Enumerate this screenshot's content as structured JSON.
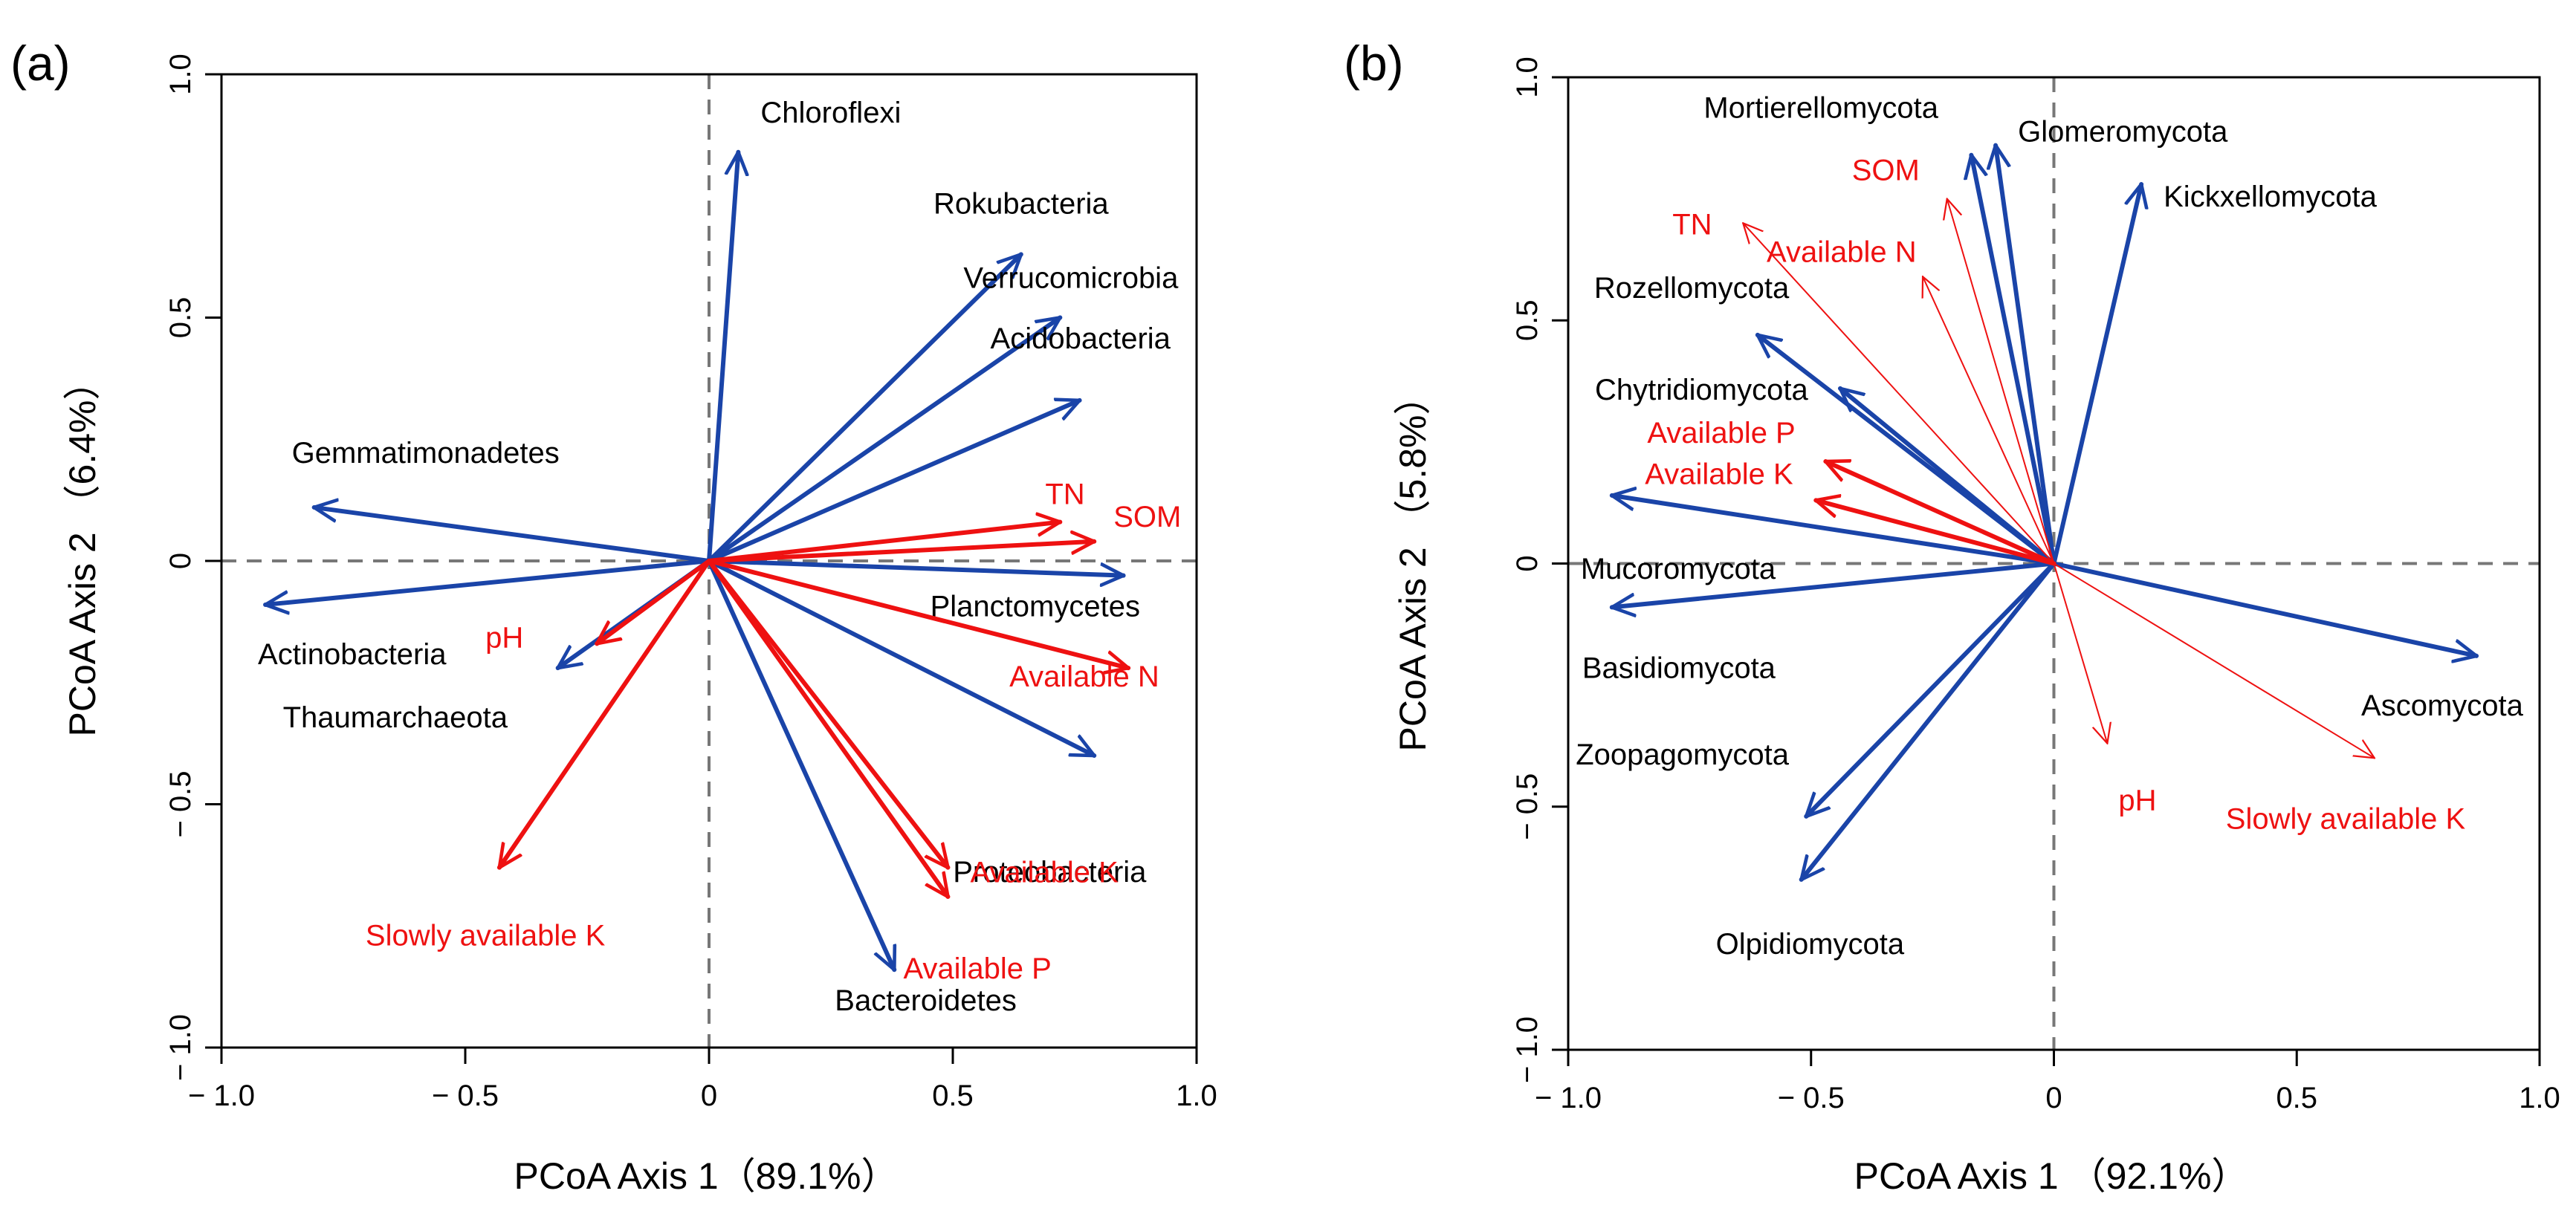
{
  "chart_data": [
    {
      "type": "biplot",
      "panel_label": "(a)",
      "xlabel": "PCoA Axis 1（89.1%）",
      "ylabel": "PCoA Axis 2 （6.4%）",
      "xlim": [
        -1,
        1
      ],
      "ylim": [
        -1,
        1
      ],
      "xticks": [
        -1,
        -0.5,
        0,
        0.5,
        1
      ],
      "yticks": [
        -1,
        -0.5,
        0,
        0.5,
        1
      ],
      "xticklabels": [
        "− 1.0",
        "− 0.5",
        "0",
        "0.5",
        "1.0"
      ],
      "yticklabels": [
        "− 1.0",
        "− 0.5",
        "0",
        "0.5",
        "1.0"
      ],
      "colors": {
        "species": "#1a44a8",
        "environment": "#ee1111"
      },
      "series": [
        {
          "name": "Chloroflexi",
          "group": "species",
          "x": 0.06,
          "y": 0.84
        },
        {
          "name": "Rokubacteria",
          "group": "species",
          "x": 0.64,
          "y": 0.63
        },
        {
          "name": "Verrucomicrobia",
          "group": "species",
          "x": 0.72,
          "y": 0.5
        },
        {
          "name": "Acidobacteria",
          "group": "species",
          "x": 0.76,
          "y": 0.33
        },
        {
          "name": "Gemmatimonadetes",
          "group": "species",
          "x": -0.81,
          "y": 0.11
        },
        {
          "name": "Actinobacteria",
          "group": "species",
          "x": -0.91,
          "y": -0.09
        },
        {
          "name": "Planctomycetes",
          "group": "species",
          "x": 0.85,
          "y": -0.03
        },
        {
          "name": "Proteobacteria",
          "group": "species",
          "x": 0.79,
          "y": -0.4
        },
        {
          "name": "Thaumarchaeota",
          "group": "species",
          "x": -0.31,
          "y": -0.22
        },
        {
          "name": "Bacteroidetes",
          "group": "species",
          "x": 0.38,
          "y": -0.84
        },
        {
          "name": "TN",
          "group": "environment",
          "x": 0.72,
          "y": 0.08
        },
        {
          "name": "SOM",
          "group": "environment",
          "x": 0.79,
          "y": 0.04
        },
        {
          "name": "Available N",
          "group": "environment",
          "x": 0.86,
          "y": -0.22
        },
        {
          "name": "pH",
          "group": "environment",
          "x": -0.23,
          "y": -0.17
        },
        {
          "name": "Available K",
          "group": "environment",
          "x": 0.49,
          "y": -0.63
        },
        {
          "name": "Available P",
          "group": "environment",
          "x": 0.49,
          "y": -0.69
        },
        {
          "name": "Slowly available K",
          "group": "environment",
          "x": -0.43,
          "y": -0.63
        }
      ]
    },
    {
      "type": "biplot",
      "panel_label": "(b)",
      "xlabel": "PCoA Axis 1 （92.1%）",
      "ylabel": "PCoA Axis 2 （5.8%）",
      "xlim": [
        -1,
        1
      ],
      "ylim": [
        -1,
        1
      ],
      "xticks": [
        -1,
        -0.5,
        0,
        0.5,
        1
      ],
      "yticks": [
        -1,
        -0.5,
        0,
        0.5,
        1
      ],
      "xticklabels": [
        "− 1.0",
        "− 0.5",
        "0",
        "0.5",
        "1.0"
      ],
      "yticklabels": [
        "− 1.0",
        "− 0.5",
        "0",
        "0.5",
        "1.0"
      ],
      "colors": {
        "species": "#1a44a8",
        "environment": "#ee1111"
      },
      "series": [
        {
          "name": "Mortierellomycota",
          "group": "species",
          "x": -0.17,
          "y": 0.84
        },
        {
          "name": "Glomeromycota",
          "group": "species",
          "x": -0.12,
          "y": 0.86
        },
        {
          "name": "Kickxellomycota",
          "group": "species",
          "x": 0.18,
          "y": 0.78
        },
        {
          "name": "Rozellomycota",
          "group": "species",
          "x": -0.61,
          "y": 0.47
        },
        {
          "name": "Chytridiomycota",
          "group": "species",
          "x": -0.44,
          "y": 0.36
        },
        {
          "name": "Mucoromycota",
          "group": "species",
          "x": -0.91,
          "y": 0.14
        },
        {
          "name": "Basidiomycota",
          "group": "species",
          "x": -0.91,
          "y": -0.09
        },
        {
          "name": "Zoopagomycota",
          "group": "species",
          "x": -0.51,
          "y": -0.52
        },
        {
          "name": "Olpidiomycota",
          "group": "species",
          "x": -0.52,
          "y": -0.65
        },
        {
          "name": "Ascomycota",
          "group": "species",
          "x": 0.87,
          "y": -0.19
        },
        {
          "name": "Available P",
          "group": "environment",
          "x": -0.47,
          "y": 0.21
        },
        {
          "name": "Available K",
          "group": "environment",
          "x": -0.49,
          "y": 0.13
        },
        {
          "name": "TN",
          "group": "environment",
          "x": -0.64,
          "y": 0.7,
          "thin": true
        },
        {
          "name": "SOM",
          "group": "environment",
          "x": -0.22,
          "y": 0.75,
          "thin": true
        },
        {
          "name": "Available N",
          "group": "environment",
          "x": -0.27,
          "y": 0.59,
          "thin": true
        },
        {
          "name": "pH",
          "group": "environment",
          "x": 0.11,
          "y": -0.37,
          "thin": true
        },
        {
          "name": "Slowly available K",
          "group": "environment",
          "x": 0.66,
          "y": -0.4,
          "thin": true
        }
      ]
    }
  ]
}
